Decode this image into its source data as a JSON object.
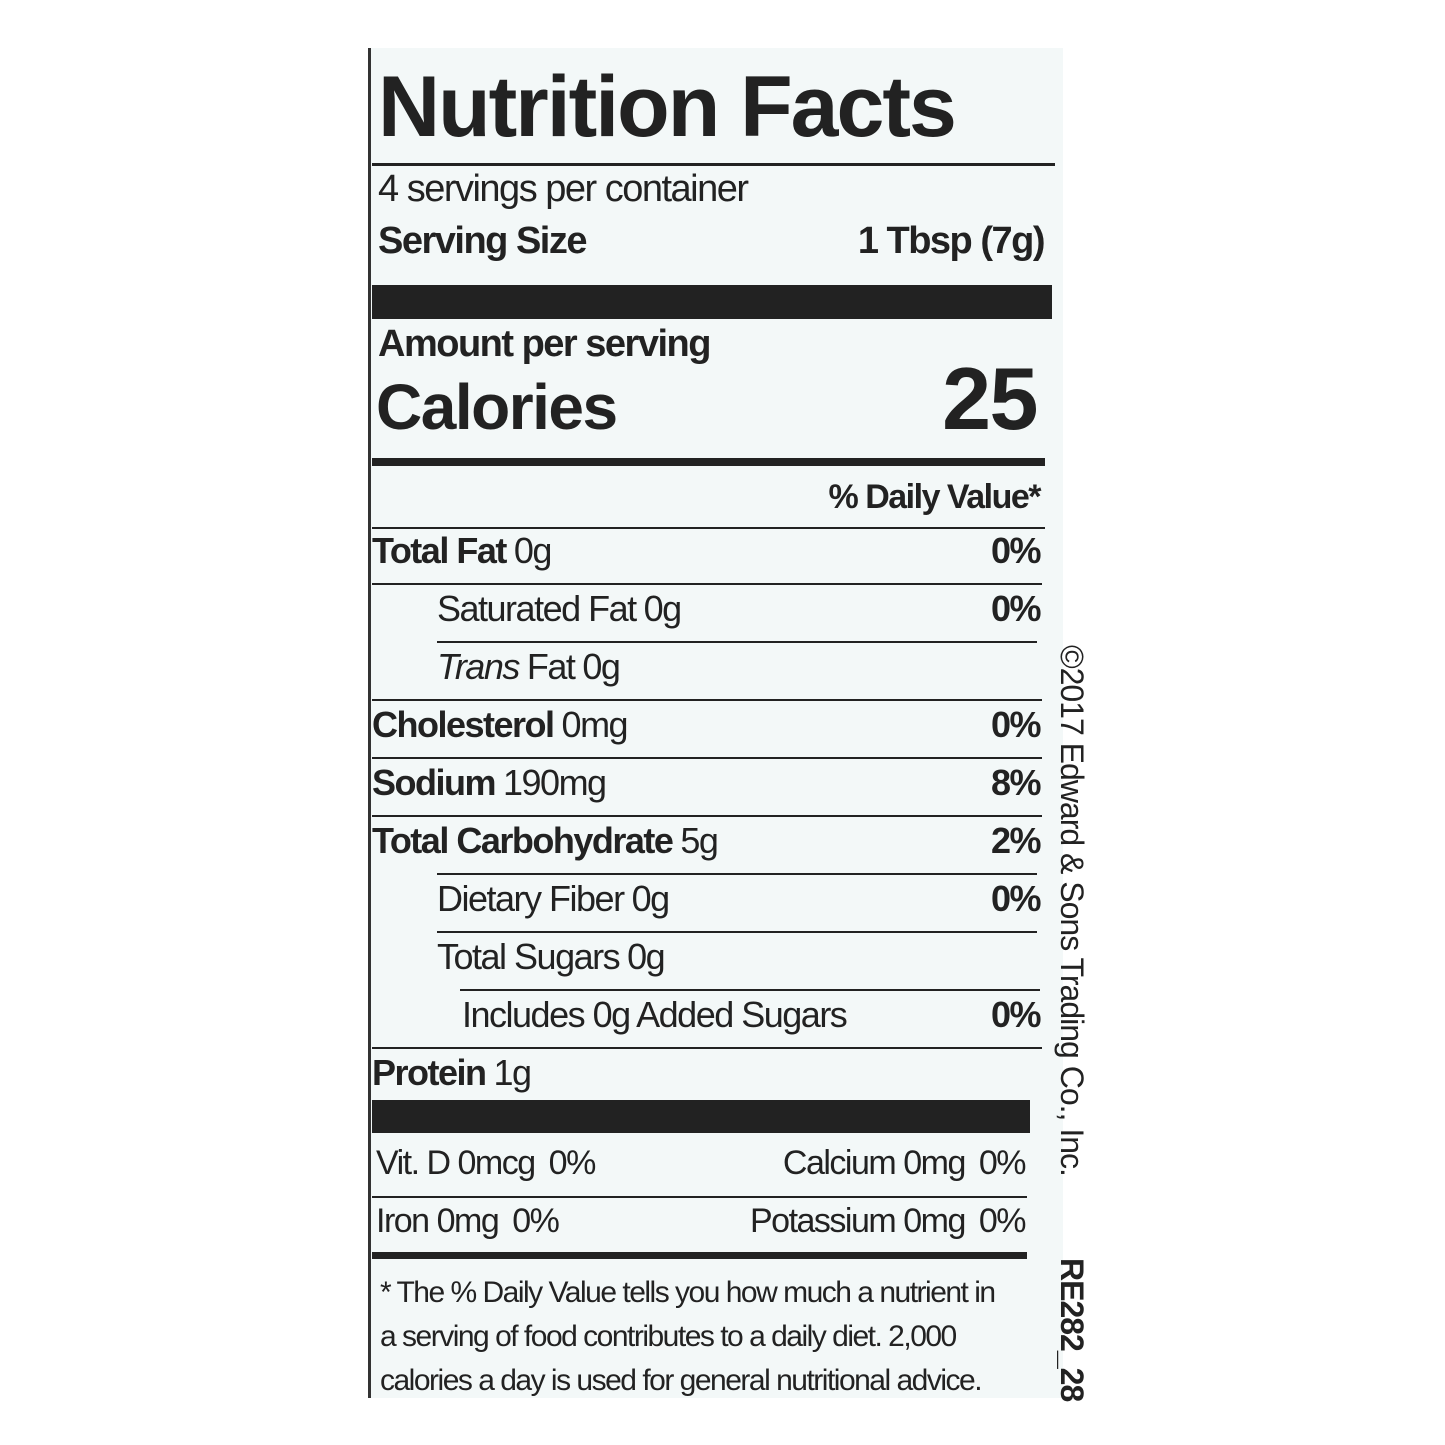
{
  "header": {
    "title": "Nutrition Facts",
    "servings": "4 servings per container",
    "serving_size_label": "Serving Size",
    "serving_size_value": "1 Tbsp (7g)"
  },
  "calories": {
    "amount_label": "Amount per serving",
    "label": "Calories",
    "value": "25"
  },
  "daily_value_header": "% Daily Value*",
  "nutrients": [
    {
      "name": "Total Fat",
      "amount": "0g",
      "dv": "0%"
    },
    {
      "name": "Saturated Fat",
      "amount": "0g",
      "dv": "0%"
    },
    {
      "name_italic": "Trans",
      "name": "Fat",
      "amount": "0g"
    },
    {
      "name": "Cholesterol",
      "amount": "0mg",
      "dv": "0%"
    },
    {
      "name": "Sodium",
      "amount": "190mg",
      "dv": "8%"
    },
    {
      "name": "Total Carbohydrate",
      "amount": "5g",
      "dv": "2%"
    },
    {
      "name": "Dietary Fiber",
      "amount": "0g",
      "dv": "0%"
    },
    {
      "name": "Total Sugars",
      "amount": "0g"
    },
    {
      "name": "Includes 0g Added Sugars",
      "dv": "0%"
    },
    {
      "name": "Protein",
      "amount": "1g"
    }
  ],
  "vitamins": [
    {
      "name": "Vit. D",
      "amount": "0mcg",
      "dv": "0%"
    },
    {
      "name": "Calcium",
      "amount": "0mg",
      "dv": "0%"
    },
    {
      "name": "Iron",
      "amount": "0mg",
      "dv": "0%"
    },
    {
      "name": "Potassium",
      "amount": "0mg",
      "dv": "0%"
    }
  ],
  "footnote": [
    "* The % Daily Value tells you how much a nutrient in",
    "a serving of food contributes to a daily diet. 2,000",
    "calories a day is used for general nutritional advice."
  ],
  "side_text": {
    "copyright": "©2017 Edward & Sons Trading Co., Inc.",
    "code": "RE282_28"
  }
}
